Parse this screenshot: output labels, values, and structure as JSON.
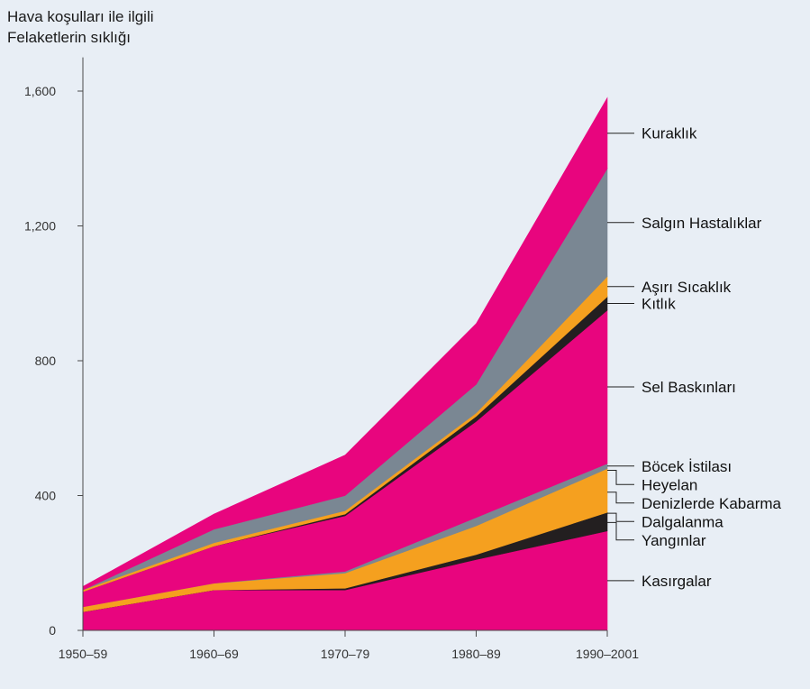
{
  "chart_data": {
    "type": "area",
    "title_lines": [
      "Hava koşulları ile ilgili",
      "Felaketlerin sıklığı"
    ],
    "xlabel": "",
    "ylabel": "",
    "categories": [
      "1950–59",
      "1960–69",
      "1970–79",
      "1980–89",
      "1990–2001"
    ],
    "ylim": [
      0,
      1700
    ],
    "yticks": [
      {
        "value": 0,
        "label": "0"
      },
      {
        "value": 400,
        "label": "400"
      },
      {
        "value": 800,
        "label": "800"
      },
      {
        "value": 1200,
        "label": "1,200"
      },
      {
        "value": 1600,
        "label": "1,600"
      }
    ],
    "stacked": true,
    "grid": false,
    "legend_placement": "right, labels at series ends",
    "series": [
      {
        "name": "Kasırgalar",
        "color": "#e8057e",
        "values": [
          55,
          120,
          120,
          210,
          295
        ]
      },
      {
        "name": "Yangınlar",
        "color": "#231f20",
        "values": [
          0,
          0,
          5,
          15,
          50
        ]
      },
      {
        "name": "Dalgalanma",
        "color": "#231f20",
        "values": [
          0,
          0,
          0,
          0,
          5
        ]
      },
      {
        "name": "Denizlerde Kabarma",
        "color": "#f5a01f",
        "values": [
          15,
          15,
          40,
          75,
          120
        ]
      },
      {
        "name": "Heyelan",
        "color": "#f5a01f",
        "values": [
          0,
          5,
          5,
          10,
          10
        ]
      },
      {
        "name": "Böcek İstilası",
        "color": "#7a8793",
        "values": [
          0,
          0,
          5,
          25,
          15
        ]
      },
      {
        "name": "Sel Baskınları",
        "color": "#e8057e",
        "values": [
          45,
          110,
          165,
          285,
          455
        ]
      },
      {
        "name": "Kıtlık",
        "color": "#231f20",
        "values": [
          0,
          0,
          5,
          15,
          40
        ]
      },
      {
        "name": "Aşırı Sıcaklık",
        "color": "#f5a01f",
        "values": [
          5,
          10,
          10,
          10,
          60
        ]
      },
      {
        "name": "Salgın Hastalıklar",
        "color": "#7a8793",
        "values": [
          0,
          40,
          45,
          85,
          320
        ]
      },
      {
        "name": "Kuraklık",
        "color": "#e8057e",
        "values": [
          10,
          45,
          120,
          180,
          210
        ]
      }
    ]
  }
}
